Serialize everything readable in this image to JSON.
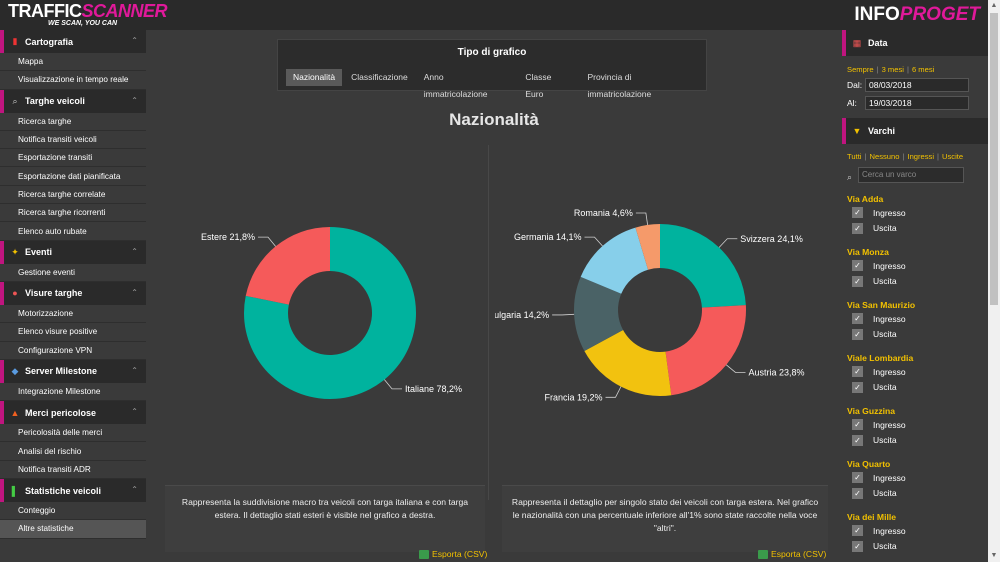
{
  "header": {
    "logo_left_white": "TRAFFIC",
    "logo_left_pink": "SCANNER",
    "tagline": "WE SCAN, YOU CAN",
    "logo_right_white": "INFO",
    "logo_right_pink": "PROGET"
  },
  "sidebar": {
    "sections": [
      {
        "label": "Cartografia",
        "icon": "book-icon",
        "items": [
          "Mappa",
          "Visualizzazione in tempo reale"
        ]
      },
      {
        "label": "Targhe veicoli",
        "icon": "search-icon",
        "items": [
          "Ricerca targhe",
          "Notifica transiti veicoli",
          "Esportazione transiti",
          "Esportazione dati pianificata",
          "Ricerca targhe correlate",
          "Ricerca targhe ricorrenti",
          "Elenco auto rubate"
        ]
      },
      {
        "label": "Eventi",
        "icon": "megaphone-icon",
        "items": [
          "Gestione eventi"
        ]
      },
      {
        "label": "Visure targhe",
        "icon": "pin-icon",
        "items": [
          "Motorizzazione",
          "Elenco visure positive",
          "Configurazione VPN"
        ]
      },
      {
        "label": "Server Milestone",
        "icon": "diamond-icon",
        "items": [
          "Integrazione Milestone"
        ]
      },
      {
        "label": "Merci pericolose",
        "icon": "fire-icon",
        "items": [
          "Pericolosità delle merci",
          "Analisi del rischio",
          "Notifica transiti ADR"
        ]
      },
      {
        "label": "Statistiche veicoli",
        "icon": "bar-chart-icon",
        "items": [
          "Conteggio",
          "Altre statistiche"
        ]
      }
    ],
    "active_item": "Altre statistiche"
  },
  "main": {
    "tipo_title": "Tipo di grafico",
    "tabs": [
      "Nazionalità",
      "Classificazione",
      "Anno immatricolazione",
      "Classe Euro",
      "Provincia di immatricolazione"
    ],
    "active_tab": "Nazionalità",
    "chart_title": "Nazionalità",
    "left_desc": "Rappresenta la suddivisione macro tra veicoli con targa italiana e con targa estera. Il dettaglio stati esteri è visible nel grafico a destra.",
    "right_desc": "Rappresenta il dettaglio per singolo stato dei veicoli con targa estera. Nel grafico le nazionalità con una percentuale inferiore all'1% sono state raccolte nella voce \"altri\".",
    "export_label": "Esporta (CSV)"
  },
  "chart_data": [
    {
      "type": "pie",
      "title": "",
      "slices": [
        {
          "label": "Italiane 78,2%",
          "value": 78.2,
          "color": "#00b39e"
        },
        {
          "label": "Estere 21,8%",
          "value": 21.8,
          "color": "#f55a5a"
        }
      ]
    },
    {
      "type": "pie",
      "title": "",
      "slices": [
        {
          "label": "Svizzera 24,1%",
          "value": 24.1,
          "color": "#00b39e"
        },
        {
          "label": "Austria 23,8%",
          "value": 23.8,
          "color": "#f55a5a"
        },
        {
          "label": "Francia 19,2%",
          "value": 19.2,
          "color": "#f2c20f"
        },
        {
          "label": "ulgaria 14,2%",
          "value": 14.2,
          "color": "#4a6266"
        },
        {
          "label": "Germania 14,1%",
          "value": 14.1,
          "color": "#87cfea"
        },
        {
          "label": "Romania 4,6%",
          "value": 4.6,
          "color": "#f59a6a"
        }
      ]
    }
  ],
  "right_panel": {
    "data_title": "Data",
    "quick_links": [
      "Sempre",
      "3 mesi",
      "6 mesi"
    ],
    "dal_label": "Dal:",
    "dal_value": "08/03/2018",
    "al_label": "Al:",
    "al_value": "19/03/2018",
    "varchi_title": "Varchi",
    "varchi_links": [
      "Tutti",
      "Nessuno",
      "Ingressi",
      "Uscite"
    ],
    "search_placeholder": "Cerca un varco",
    "ingresso_label": "Ingresso",
    "uscita_label": "Uscita",
    "varchi": [
      "Via Adda",
      "Via Monza",
      "Via San Maurizio",
      "Viale Lombardia",
      "Via Guzzina",
      "Via Quarto",
      "Via dei Mille"
    ]
  }
}
